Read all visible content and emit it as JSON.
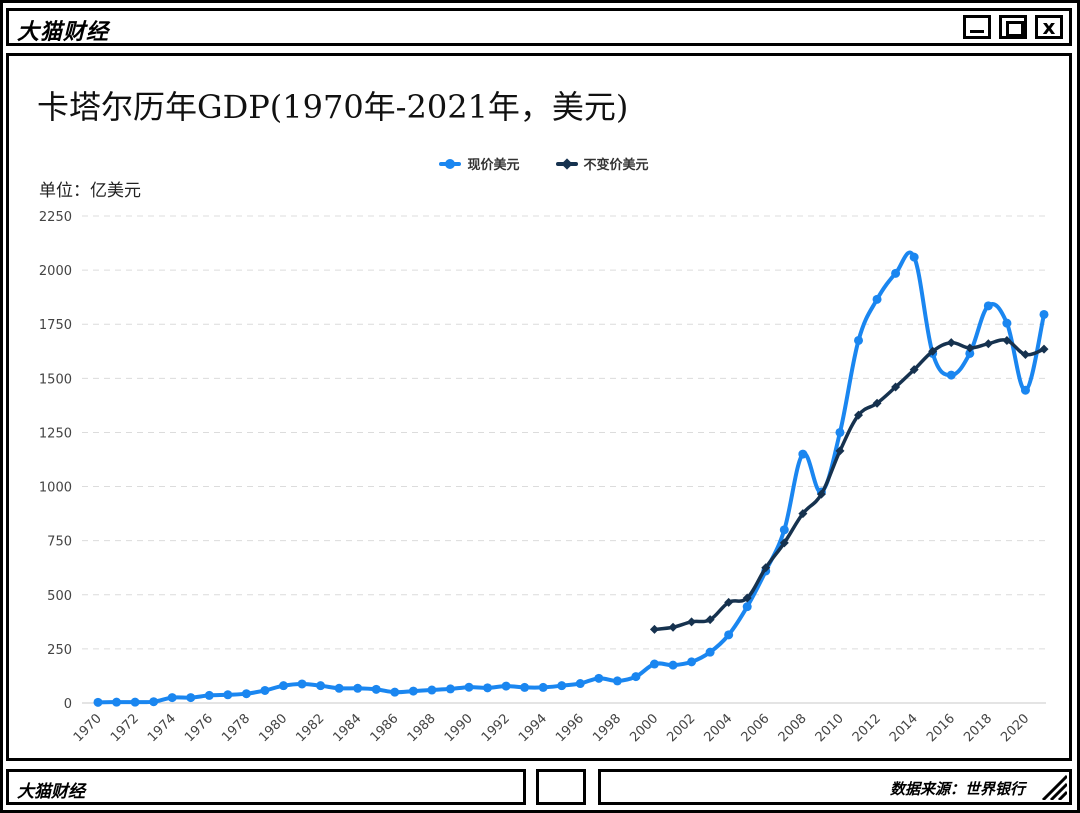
{
  "window": {
    "brand": "大猫财经",
    "minimize_label": "_",
    "maximize_label": "□",
    "close_label": "x"
  },
  "footer": {
    "brand": "大猫财经",
    "source": "数据来源：世界银行"
  },
  "colors": {
    "current": "#1a86f0",
    "constant": "#16324f",
    "grid": "#dcdcdc"
  },
  "chart_data": {
    "type": "line",
    "title": "卡塔尔历年GDP(1970年-2021年，美元)",
    "unit_label": "单位：亿美元",
    "legend_position": "top-center",
    "grid": true,
    "ylim": [
      0,
      2250
    ],
    "y_ticks": [
      "0",
      "250",
      "500",
      "750",
      "1000",
      "1250",
      "1500",
      "1750",
      "2000",
      "2250"
    ],
    "y_tick_values": [
      0,
      250,
      500,
      750,
      1000,
      1250,
      1500,
      1750,
      2000,
      2250
    ],
    "x": [
      1970,
      1971,
      1972,
      1973,
      1974,
      1975,
      1976,
      1977,
      1978,
      1979,
      1980,
      1981,
      1982,
      1983,
      1984,
      1985,
      1986,
      1987,
      1988,
      1989,
      1990,
      1991,
      1992,
      1993,
      1994,
      1995,
      1996,
      1997,
      1998,
      1999,
      2000,
      2001,
      2002,
      2003,
      2004,
      2005,
      2006,
      2007,
      2008,
      2009,
      2010,
      2011,
      2012,
      2013,
      2014,
      2015,
      2016,
      2017,
      2018,
      2019,
      2020,
      2021
    ],
    "x_tick_labels": [
      "1970",
      "1972",
      "1974",
      "1976",
      "1978",
      "1980",
      "1982",
      "1984",
      "1986",
      "1988",
      "1990",
      "1992",
      "1994",
      "1996",
      "1998",
      "2000",
      "2002",
      "2004",
      "2006",
      "2008",
      "2010",
      "2012",
      "2014",
      "2016",
      "2018",
      "2020"
    ],
    "series": [
      {
        "name": "现价美元",
        "marker": "circle",
        "values": [
          3,
          4,
          4,
          6,
          25,
          25,
          35,
          38,
          43,
          58,
          80,
          88,
          80,
          68,
          68,
          63,
          50,
          55,
          60,
          65,
          73,
          70,
          78,
          72,
          72,
          80,
          90,
          114,
          102,
          122,
          180,
          175,
          190,
          235,
          315,
          445,
          610,
          800,
          1150,
          975,
          1250,
          1675,
          1865,
          1985,
          2060,
          1615,
          1515,
          1615,
          1835,
          1755,
          1445,
          1795
        ]
      },
      {
        "name": "不变价美元",
        "marker": "diamond",
        "values": [
          null,
          null,
          null,
          null,
          null,
          null,
          null,
          null,
          null,
          null,
          null,
          null,
          null,
          null,
          null,
          null,
          null,
          null,
          null,
          null,
          null,
          null,
          null,
          null,
          null,
          null,
          null,
          null,
          null,
          null,
          340,
          350,
          375,
          385,
          465,
          485,
          625,
          740,
          875,
          965,
          1165,
          1330,
          1385,
          1460,
          1540,
          1625,
          1665,
          1640,
          1660,
          1675,
          1610,
          1635
        ]
      }
    ]
  }
}
